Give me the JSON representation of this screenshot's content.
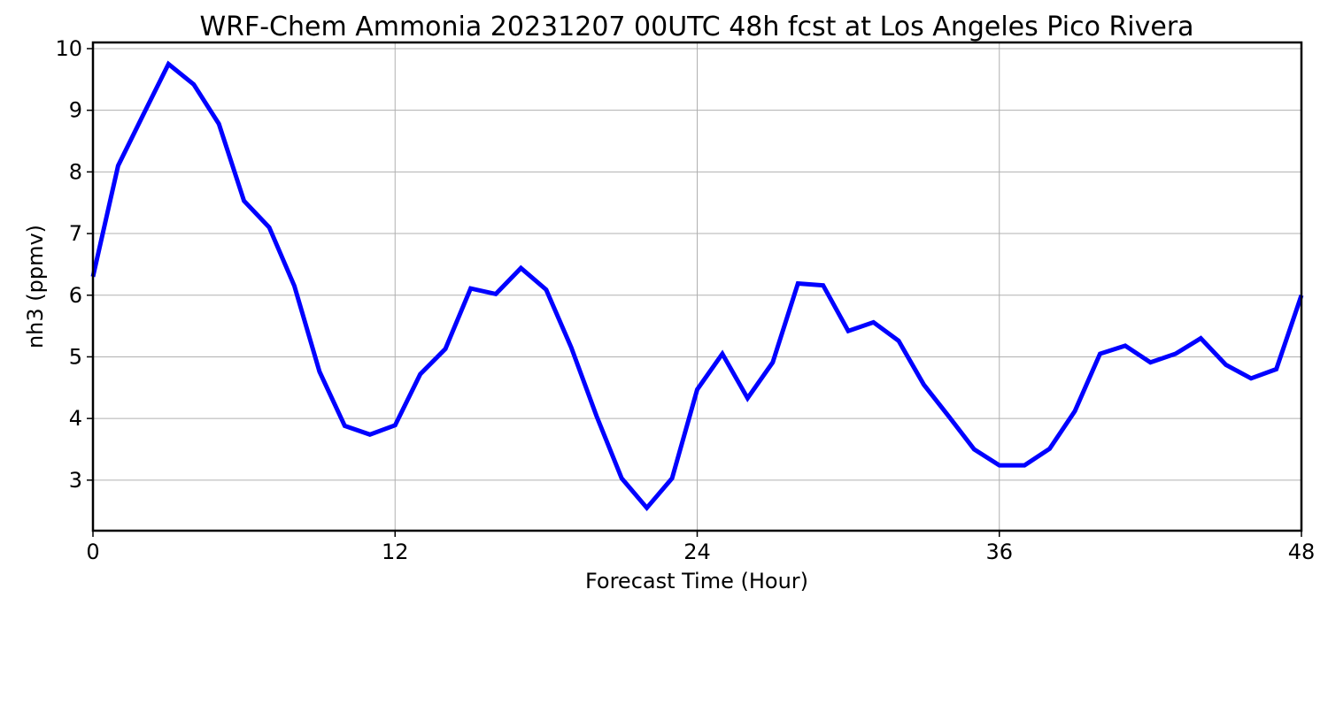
{
  "chart_data": {
    "type": "line",
    "title": "WRF-Chem Ammonia  20231207 00UTC 48h fcst at Los Angeles Pico Rivera",
    "xlabel": "Forecast Time (Hour)",
    "ylabel": "nh3  (ppmv)",
    "xlim": [
      0,
      48
    ],
    "ylim": [
      2.18,
      10.1
    ],
    "xticks": [
      0,
      12,
      24,
      36,
      48
    ],
    "yticks": [
      3,
      4,
      5,
      6,
      7,
      8,
      9,
      10
    ],
    "grid": true,
    "series": [
      {
        "color": "#0000ff",
        "x": [
          0,
          1,
          2,
          3,
          4,
          5,
          6,
          7,
          8,
          9,
          10,
          11,
          12,
          13,
          14,
          15,
          16,
          17,
          18,
          19,
          20,
          21,
          22,
          23,
          24,
          25,
          26,
          27,
          28,
          29,
          30,
          31,
          32,
          33,
          34,
          35,
          36,
          37,
          38,
          39,
          40,
          41,
          42,
          43,
          44,
          45,
          46,
          47,
          48
        ],
        "values": [
          6.3,
          8.1,
          8.93,
          9.75,
          9.42,
          8.78,
          7.53,
          7.1,
          6.15,
          4.76,
          3.88,
          3.74,
          3.89,
          4.72,
          5.13,
          6.11,
          6.02,
          6.44,
          6.09,
          5.15,
          4.04,
          3.03,
          2.55,
          3.03,
          4.47,
          5.05,
          4.33,
          4.91,
          6.19,
          6.16,
          5.42,
          5.56,
          5.26,
          4.55,
          4.03,
          3.5,
          3.24,
          3.24,
          3.51,
          4.12,
          5.05,
          5.18,
          4.91,
          5.05,
          5.3,
          4.87,
          4.65,
          4.8,
          6.0
        ]
      }
    ]
  }
}
